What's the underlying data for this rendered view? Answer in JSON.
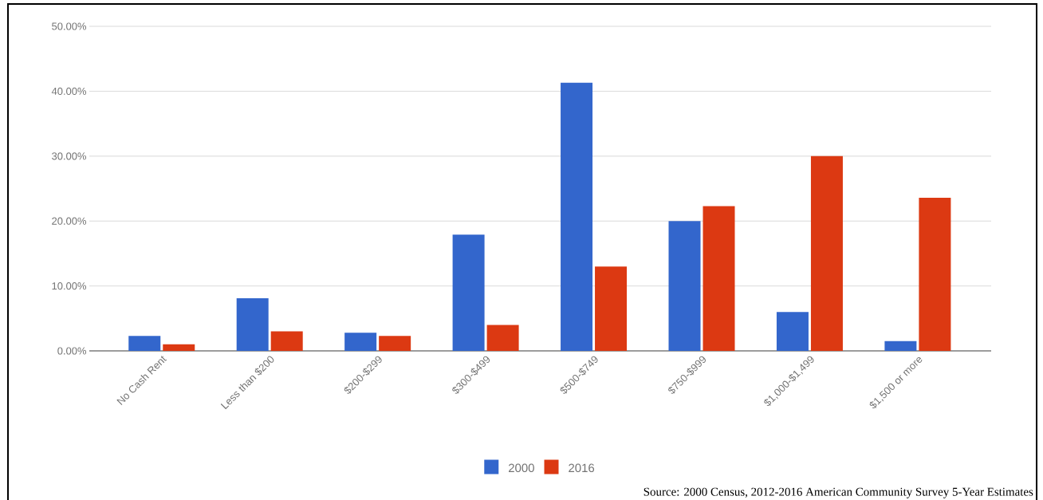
{
  "chart_data": {
    "type": "bar",
    "categories": [
      "No Cash Rent",
      "Less than $200",
      "$200-$299",
      "$300-$499",
      "$500-$749",
      "$750-$999",
      "$1,000-$1,499",
      "$1,500 or more"
    ],
    "series": [
      {
        "name": "2000",
        "color": "#3366cc",
        "values": [
          2.3,
          8.1,
          2.8,
          17.9,
          41.3,
          20.0,
          6.0,
          1.5
        ]
      },
      {
        "name": "2016",
        "color": "#dc3912",
        "values": [
          1.0,
          3.0,
          2.3,
          4.0,
          13.0,
          22.3,
          30.0,
          23.6
        ]
      }
    ],
    "ylim": [
      0,
      50
    ],
    "yticks": [
      {
        "value": 0,
        "label": "0.00%"
      },
      {
        "value": 10,
        "label": "10.00%"
      },
      {
        "value": 20,
        "label": "20.00%"
      },
      {
        "value": 30,
        "label": "30.00%"
      },
      {
        "value": 40,
        "label": "40.00%"
      },
      {
        "value": 50,
        "label": "50.00%"
      }
    ],
    "grid": "y",
    "legend": "bottom",
    "annotations": [
      "Source: 2000 Census, 2012-2016 American Community Survey 5-Year Estimates"
    ]
  }
}
